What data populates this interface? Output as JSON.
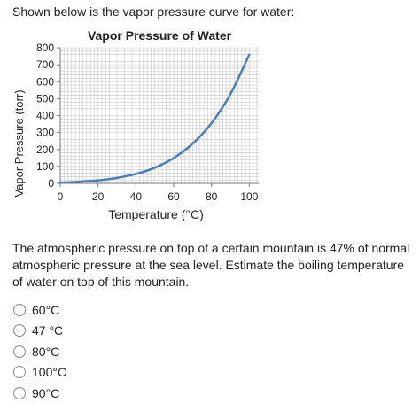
{
  "intro_text": "Shown below is the vapor pressure curve for water:",
  "question_text": "The atmospheric pressure on top of a certain mountain is 47% of normal atmospheric pressure at the sea level. Estimate the boiling temperature of water on top of this mountain.",
  "options": [
    {
      "label": "60°C"
    },
    {
      "label": "47 °C"
    },
    {
      "label": "80°C"
    },
    {
      "label": "100°C"
    },
    {
      "label": "90°C"
    }
  ],
  "colors": {
    "curve": "#4a7ebb",
    "grid": "#c8c8c8",
    "axis": "#777777"
  },
  "chart_data": {
    "type": "line",
    "title": "Vapor Pressure of Water",
    "xlabel": "Temperature (°C)",
    "ylabel": "Vapor Pressure (torr)",
    "xlim": [
      0,
      105
    ],
    "ylim": [
      0,
      800
    ],
    "xticks": [
      0,
      20,
      40,
      60,
      80,
      100
    ],
    "yticks": [
      0,
      100,
      200,
      300,
      400,
      500,
      600,
      700,
      800
    ],
    "grid": true,
    "series": [
      {
        "x": [
          0,
          10,
          20,
          25,
          30,
          40,
          50,
          60,
          70,
          80,
          90,
          100
        ],
        "y": [
          4.6,
          9.2,
          17.5,
          23.8,
          31.8,
          55.3,
          92.5,
          149.4,
          233.7,
          355.1,
          525.8,
          760
        ]
      }
    ]
  }
}
